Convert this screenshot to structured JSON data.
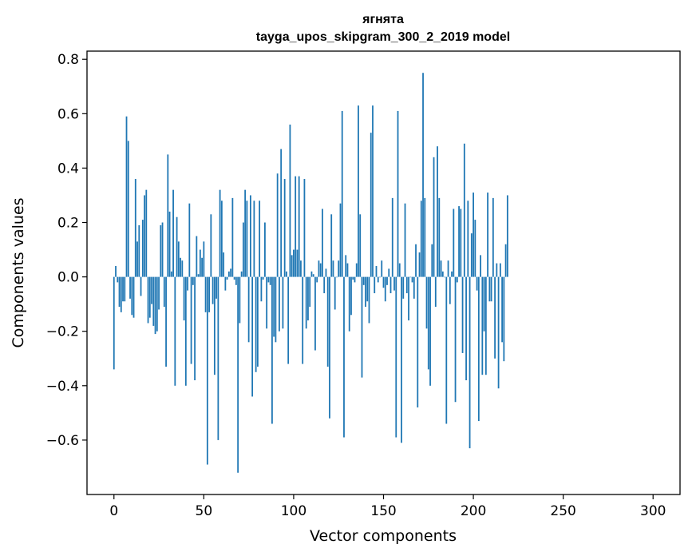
{
  "chart_data": {
    "type": "bar",
    "title_line1": "ягнята",
    "title_line2": "tayga_upos_skipgram_300_2_2019 model",
    "xlabel": "Vector components",
    "ylabel": "Components values",
    "xlim": [
      -15,
      315
    ],
    "ylim": [
      -0.8,
      0.83
    ],
    "xticks": [
      0,
      50,
      100,
      150,
      200,
      250,
      300
    ],
    "xtick_labels": [
      "0",
      "50",
      "100",
      "150",
      "200",
      "250",
      "300"
    ],
    "yticks": [
      -0.6,
      -0.4,
      -0.2,
      0.0,
      0.2,
      0.4,
      0.6,
      0.8
    ],
    "ytick_labels": [
      "−0.6",
      "−0.4",
      "−0.2",
      "0.0",
      "0.2",
      "0.4",
      "0.6",
      "0.8"
    ],
    "bar_color": "#1f77b4",
    "grid": false,
    "values": [
      -0.34,
      0.04,
      -0.02,
      -0.11,
      -0.13,
      -0.09,
      -0.09,
      0.59,
      0.5,
      -0.08,
      -0.14,
      -0.15,
      0.36,
      0.13,
      0.19,
      -0.07,
      0.21,
      0.3,
      0.32,
      -0.17,
      -0.15,
      -0.1,
      -0.18,
      -0.21,
      -0.2,
      -0.12,
      0.19,
      0.2,
      -0.11,
      -0.33,
      0.45,
      0.24,
      0.02,
      0.32,
      -0.4,
      0.22,
      0.13,
      0.07,
      0.06,
      -0.16,
      -0.4,
      -0.05,
      0.27,
      -0.32,
      -0.03,
      -0.38,
      0.15,
      0.01,
      0.1,
      0.07,
      0.13,
      -0.13,
      -0.69,
      -0.13,
      0.23,
      -0.1,
      -0.36,
      -0.08,
      -0.6,
      0.32,
      0.28,
      0.09,
      -0.05,
      -0.01,
      0.02,
      0.03,
      0.29,
      -0.01,
      -0.03,
      -0.72,
      -0.17,
      0.02,
      0.2,
      0.32,
      0.28,
      -0.24,
      0.3,
      -0.44,
      0.28,
      -0.35,
      -0.33,
      0.28,
      -0.09,
      -0.01,
      0.2,
      -0.19,
      -0.02,
      -0.03,
      -0.54,
      -0.22,
      -0.24,
      0.38,
      -0.2,
      0.47,
      -0.19,
      0.36,
      0.02,
      -0.32,
      0.56,
      0.08,
      0.1,
      0.37,
      0.1,
      0.37,
      0.06,
      -0.32,
      0.36,
      -0.19,
      -0.16,
      -0.11,
      0.02,
      0.01,
      -0.27,
      -0.02,
      0.06,
      0.05,
      0.25,
      -0.06,
      0.03,
      -0.33,
      -0.52,
      0.23,
      0.06,
      -0.12,
      0.0,
      0.06,
      0.27,
      0.61,
      -0.59,
      0.08,
      0.05,
      -0.2,
      -0.14,
      -0.01,
      -0.02,
      0.05,
      0.63,
      0.23,
      -0.37,
      -0.03,
      -0.11,
      -0.09,
      -0.17,
      0.53,
      0.63,
      -0.06,
      0.04,
      -0.02,
      0.0,
      0.06,
      -0.04,
      -0.09,
      -0.03,
      0.03,
      -0.06,
      0.29,
      -0.05,
      -0.59,
      0.61,
      0.05,
      -0.61,
      -0.08,
      0.27,
      -0.06,
      -0.16,
      0.0,
      -0.02,
      -0.08,
      0.12,
      -0.48,
      0.09,
      0.28,
      0.75,
      0.29,
      -0.19,
      -0.34,
      -0.4,
      0.12,
      0.44,
      -0.11,
      0.48,
      0.29,
      0.06,
      0.02,
      0.0,
      -0.54,
      0.06,
      -0.1,
      0.02,
      0.25,
      -0.46,
      -0.02,
      0.26,
      0.25,
      -0.28,
      0.49,
      -0.38,
      0.28,
      -0.63,
      0.16,
      0.31,
      0.21,
      -0.05,
      -0.53,
      0.08,
      -0.36,
      -0.2,
      -0.36,
      0.31,
      -0.09,
      -0.09,
      0.29,
      -0.3,
      0.05,
      -0.41,
      0.05,
      -0.24,
      -0.31,
      0.12,
      0.3
    ]
  }
}
